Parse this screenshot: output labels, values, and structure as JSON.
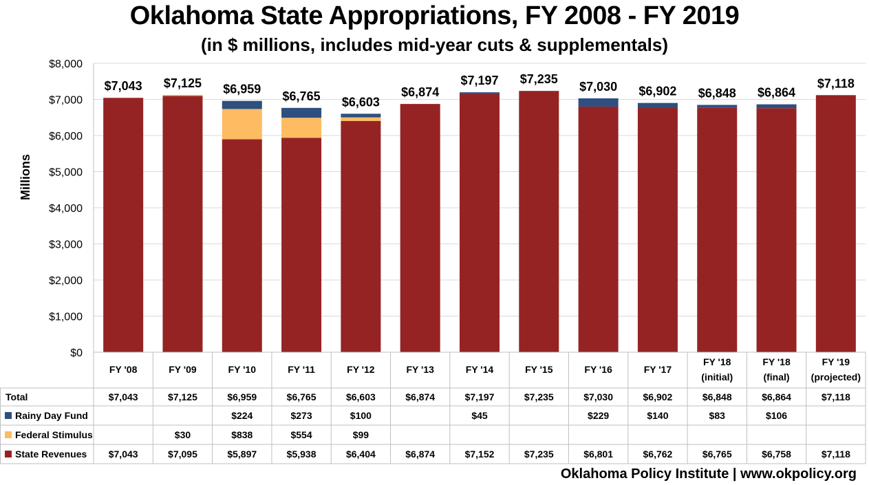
{
  "chart_data": {
    "type": "bar",
    "stacked": true,
    "title": "Oklahoma State Appropriations, FY 2008 - FY 2019",
    "subtitle": "(in $ millions, includes mid-year cuts & supplementals)",
    "ylabel": "Millions",
    "ylim": [
      0,
      8000
    ],
    "yticks": [
      "$0",
      "$1,000",
      "$2,000",
      "$3,000",
      "$4,000",
      "$5,000",
      "$6,000",
      "$7,000",
      "$8,000"
    ],
    "grid": true,
    "categories": [
      [
        "FY '08"
      ],
      [
        "FY '09"
      ],
      [
        "FY '10"
      ],
      [
        "FY '11"
      ],
      [
        "FY '12"
      ],
      [
        "FY '13"
      ],
      [
        "FY '14"
      ],
      [
        "FY '15"
      ],
      [
        "FY '16"
      ],
      [
        "FY '17"
      ],
      [
        "FY '18",
        "(initial)"
      ],
      [
        "FY '18",
        "(final)"
      ],
      [
        "FY '19",
        "(projected)"
      ]
    ],
    "totals_label": "Total",
    "totals": [
      7043,
      7125,
      6959,
      6765,
      6603,
      6874,
      7197,
      7235,
      7030,
      6902,
      6848,
      6864,
      7118
    ],
    "total_text": [
      "$7,043",
      "$7,125",
      "$6,959",
      "$6,765",
      "$6,603",
      "$6,874",
      "$7,197",
      "$7,235",
      "$7,030",
      "$6,902",
      "$6,848",
      "$6,864",
      "$7,118"
    ],
    "series": [
      {
        "name": "State Revenues",
        "color": "#962323",
        "values": [
          7043,
          7095,
          5897,
          5938,
          6404,
          6874,
          7152,
          7235,
          6801,
          6762,
          6765,
          6758,
          7118
        ],
        "text": [
          "$7,043",
          "$7,095",
          "$5,897",
          "$5,938",
          "$6,404",
          "$6,874",
          "$7,152",
          "$7,235",
          "$6,801",
          "$6,762",
          "$6,765",
          "$6,758",
          "$7,118"
        ]
      },
      {
        "name": "Federal Stimulus",
        "color": "#FDBB62",
        "values": [
          0,
          30,
          838,
          554,
          99,
          0,
          0,
          0,
          0,
          0,
          0,
          0,
          0
        ],
        "text": [
          "",
          "$30",
          "$838",
          "$554",
          "$99",
          "",
          "",
          "",
          "",
          "",
          "",
          "",
          ""
        ]
      },
      {
        "name": "Rainy Day Fund",
        "color": "#2E4F7F",
        "values": [
          0,
          0,
          224,
          273,
          100,
          0,
          45,
          0,
          229,
          140,
          83,
          106,
          0
        ],
        "text": [
          "",
          "",
          "$224",
          "$273",
          "$100",
          "",
          "$45",
          "",
          "$229",
          "$140",
          "$83",
          "$106",
          ""
        ]
      }
    ],
    "table_row_order": [
      "Rainy Day Fund",
      "Federal Stimulus",
      "State Revenues"
    ]
  },
  "footer": "Oklahoma Policy Institute | www.okpolicy.org"
}
